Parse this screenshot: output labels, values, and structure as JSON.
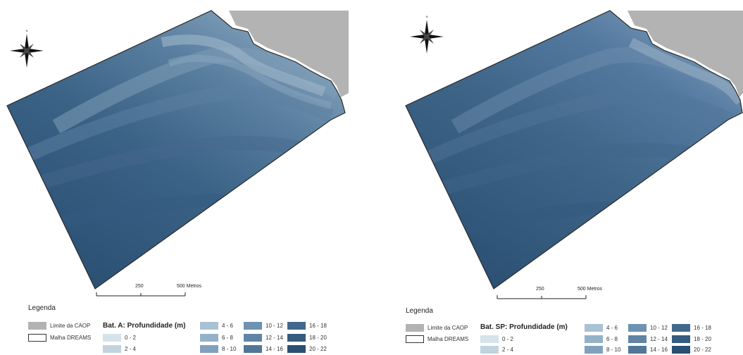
{
  "maps": [
    {
      "id": "left",
      "legend": {
        "title": "Legenda",
        "caop_label": "Limite da CAOP",
        "malha_label": "Malha DREAMS",
        "layer_title": "Bat. A: Profundidade (m)"
      },
      "scale": {
        "mid": "250",
        "end": "500 Metros"
      }
    },
    {
      "id": "right",
      "legend": {
        "title": "Legenda",
        "caop_label": "Limite da CAOP",
        "malha_label": "Malha DREAMS",
        "layer_title": "Bat. SP: Profundidade (m)"
      },
      "scale": {
        "mid": "250",
        "end": "500 Metros"
      }
    }
  ],
  "depth_classes": [
    {
      "label": "0 - 2",
      "color": "#d5e3ea"
    },
    {
      "label": "2 - 4",
      "color": "#c0d3de"
    },
    {
      "label": "4 - 6",
      "color": "#a9c2d4"
    },
    {
      "label": "6 - 8",
      "color": "#93b2c9"
    },
    {
      "label": "8 - 10",
      "color": "#7fa1bd"
    },
    {
      "label": "10 - 12",
      "color": "#6e92b1"
    },
    {
      "label": "12 - 14",
      "color": "#5f84a6"
    },
    {
      "label": "14 - 16",
      "color": "#50769a"
    },
    {
      "label": "16 - 18",
      "color": "#42688d"
    },
    {
      "label": "18 - 20",
      "color": "#355b80"
    },
    {
      "label": "20 - 22",
      "color": "#294f73"
    }
  ],
  "colors": {
    "land": "#b3b3b3",
    "boundary": "#2b2b2b"
  },
  "icons": {
    "north_arrow": "compass-rose-icon"
  }
}
